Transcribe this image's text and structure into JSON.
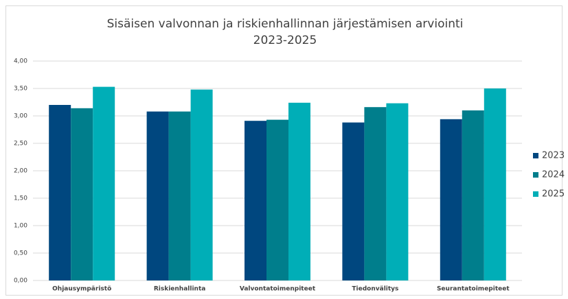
{
  "chart_data": {
    "type": "bar",
    "title": [
      "Sisäisen valvonnan ja riskienhallinnan järjestämisen arviointi",
      "2023-2025"
    ],
    "categories": [
      "Ohjausympäristö",
      "Riskienhallinta",
      "Valvontatoimenpiteet",
      "Tiedonvälitys",
      "Seurantatoimepiteet"
    ],
    "series": [
      {
        "name": "2023",
        "color": "#00477f",
        "values": [
          3.2,
          3.08,
          2.91,
          2.88,
          2.94
        ]
      },
      {
        "name": "2024",
        "color": "#007e8c",
        "values": [
          3.14,
          3.08,
          2.93,
          3.16,
          3.1
        ]
      },
      {
        "name": "2025",
        "color": "#00aeb7",
        "values": [
          3.53,
          3.48,
          3.24,
          3.23,
          3.5
        ]
      }
    ],
    "ylim": [
      0,
      4
    ],
    "yticks": [
      {
        "value": 0,
        "label": "0,00"
      },
      {
        "value": 0.5,
        "label": "0,50"
      },
      {
        "value": 1,
        "label": "1,00"
      },
      {
        "value": 1.5,
        "label": "1,50"
      },
      {
        "value": 2,
        "label": "2,00"
      },
      {
        "value": 2.5,
        "label": "2,50"
      },
      {
        "value": 3,
        "label": "3,00"
      },
      {
        "value": 3.5,
        "label": "3,50"
      },
      {
        "value": 4,
        "label": "4,00"
      }
    ],
    "grid": true,
    "legend": "right"
  }
}
